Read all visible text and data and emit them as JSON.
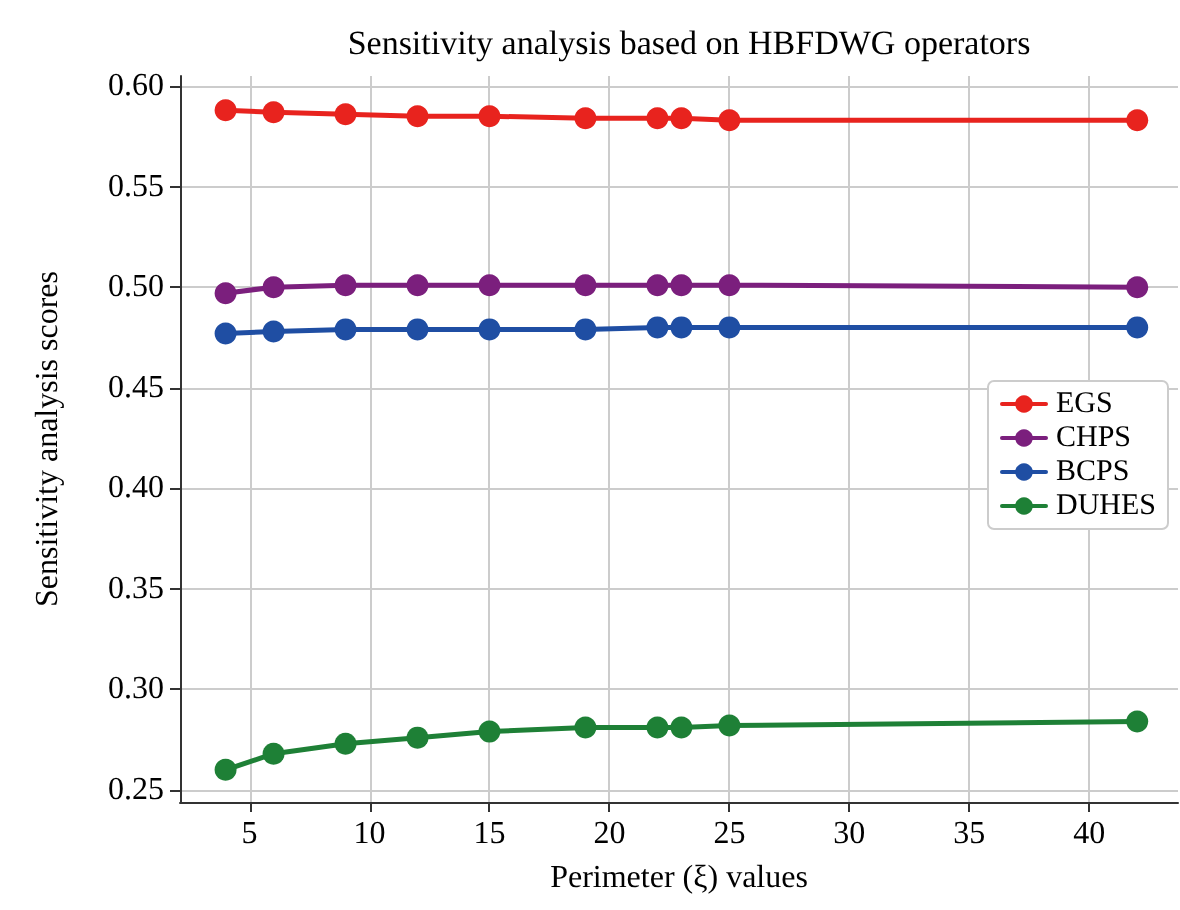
{
  "chart_data": {
    "type": "line",
    "title": "Sensitivity analysis based on HBFDWG operators",
    "xlabel": "Perimeter (ξ) values",
    "ylabel": "Sensitivity analysis scores",
    "x": [
      4,
      6,
      9,
      12,
      15,
      19,
      22,
      23,
      25,
      42
    ],
    "series": [
      {
        "name": "EGS",
        "color": "#e8231e",
        "values": [
          0.588,
          0.587,
          0.586,
          0.585,
          0.585,
          0.584,
          0.584,
          0.584,
          0.583,
          0.583
        ]
      },
      {
        "name": "CHPS",
        "color": "#7b1f7d",
        "values": [
          0.497,
          0.5,
          0.501,
          0.501,
          0.501,
          0.501,
          0.501,
          0.501,
          0.501,
          0.5
        ]
      },
      {
        "name": "BCPS",
        "color": "#1f4ea3",
        "values": [
          0.477,
          0.478,
          0.479,
          0.479,
          0.479,
          0.479,
          0.48,
          0.48,
          0.48,
          0.48
        ]
      },
      {
        "name": "DUHES",
        "color": "#1e8036",
        "values": [
          0.26,
          0.268,
          0.273,
          0.276,
          0.279,
          0.281,
          0.281,
          0.281,
          0.282,
          0.284
        ]
      }
    ],
    "xlim": [
      2.1,
      43.7
    ],
    "xticks": [
      5,
      10,
      15,
      20,
      25,
      30,
      35,
      40
    ],
    "ylim": [
      0.244,
      0.605
    ],
    "yticks": [
      0.25,
      {
        "value": 0.3,
        "label": "0.30"
      },
      0.35,
      {
        "value": 0.4,
        "label": "0.40"
      },
      0.45,
      {
        "value": 0.5,
        "label": "0.50"
      },
      0.55,
      {
        "value": 0.6,
        "label": "0.60"
      }
    ],
    "grid": true,
    "legend": "right",
    "marker": "circle",
    "line_style": "solid"
  }
}
